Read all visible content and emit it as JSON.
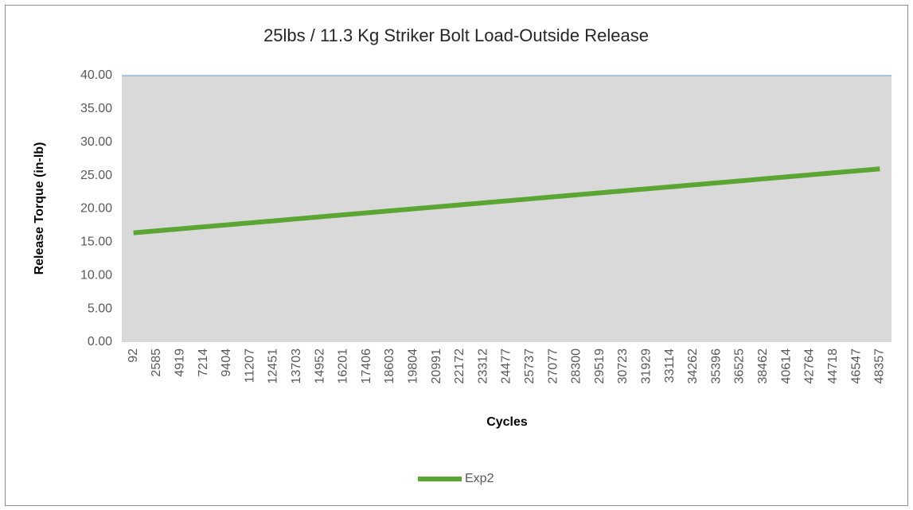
{
  "chart_data": {
    "type": "line",
    "title": "25lbs / 11.3 Kg Striker Bolt Load-Outside Release",
    "x_label": "Cycles",
    "y_label": "Release Torque (in-lb)",
    "categories": [
      "92",
      "2585",
      "4919",
      "7214",
      "9404",
      "11207",
      "12451",
      "13703",
      "14952",
      "16201",
      "17406",
      "18603",
      "19804",
      "20991",
      "22172",
      "23312",
      "24477",
      "25737",
      "27077",
      "28300",
      "29519",
      "30723",
      "31929",
      "33114",
      "34262",
      "35396",
      "36525",
      "38462",
      "40614",
      "42764",
      "44718",
      "46547",
      "48357"
    ],
    "series": [
      {
        "name": "Exp2",
        "color": "#5ba633",
        "values": [
          16.4,
          16.7,
          17.0,
          17.3,
          17.6,
          17.9,
          18.2,
          18.5,
          18.8,
          19.1,
          19.4,
          19.7,
          20.0,
          20.3,
          20.6,
          20.9,
          21.2,
          21.5,
          21.8,
          22.1,
          22.4,
          22.7,
          23.0,
          23.3,
          23.6,
          23.9,
          24.2,
          24.5,
          24.8,
          25.1,
          25.4,
          25.7,
          26.0
        ]
      }
    ],
    "ylim": [
      0,
      40
    ],
    "yticks": [
      {
        "value": 0,
        "label": "0.00"
      },
      {
        "value": 5,
        "label": "5.00"
      },
      {
        "value": 10,
        "label": "10.00"
      },
      {
        "value": 15,
        "label": "15.00"
      },
      {
        "value": 20,
        "label": "20.00"
      },
      {
        "value": 25,
        "label": "25.00"
      },
      {
        "value": 30,
        "label": "30.00"
      },
      {
        "value": 35,
        "label": "35.00"
      },
      {
        "value": 40,
        "label": "40.00"
      }
    ],
    "grid": false,
    "legend": "bottom"
  }
}
